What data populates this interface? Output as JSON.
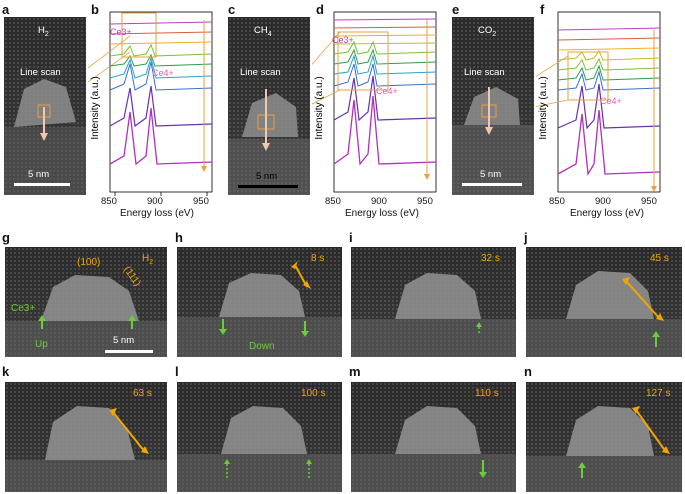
{
  "top": {
    "panels": [
      {
        "letter": "a",
        "gas_base": "H",
        "gas_sub": "2",
        "line_scan": "Line scan",
        "scalebar": "5 nm"
      },
      {
        "letter": "c",
        "gas_base": "CH",
        "gas_sub": "4",
        "line_scan": "Line scan",
        "scalebar": "5 nm"
      },
      {
        "letter": "e",
        "gas_base": "CO",
        "gas_sub": "2",
        "line_scan": "Line scan",
        "scalebar": "5 nm"
      }
    ],
    "spectra": [
      {
        "letter": "b",
        "ylabel": "Intensity (a.u.)",
        "xlabel": "Energy loss (eV)",
        "ticks": [
          "850",
          "900",
          "950"
        ],
        "ce3": "Ce3+",
        "ce4": "Ce4+"
      },
      {
        "letter": "d",
        "ylabel": "Intensity (a.u.)",
        "xlabel": "Energy loss (eV)",
        "ticks": [
          "850",
          "900",
          "950"
        ],
        "ce3": "Ce3+",
        "ce4": "Ce4+"
      },
      {
        "letter": "f",
        "ylabel": "Intensity (a.u.)",
        "xlabel": "Energy loss (eV)",
        "ticks": [
          "850",
          "900",
          "950"
        ],
        "ce4": "Ce4+"
      }
    ]
  },
  "bottom": {
    "panels": [
      {
        "letter": "g",
        "time": "H2",
        "facet100": "(100)",
        "facet111": "(111)",
        "ce3": "Ce3+",
        "up": "Up",
        "scalebar": "5 nm"
      },
      {
        "letter": "h",
        "time": "8 s",
        "down": "Down"
      },
      {
        "letter": "i",
        "time": "32 s"
      },
      {
        "letter": "j",
        "time": "45 s"
      },
      {
        "letter": "k",
        "time": "63 s"
      },
      {
        "letter": "l",
        "time": "100 s"
      },
      {
        "letter": "m",
        "time": "110 s"
      },
      {
        "letter": "n",
        "time": "127 s"
      }
    ]
  },
  "colors": {
    "orange": "#f0a500",
    "green": "#6ccb3a",
    "magenta": "#c23cc2",
    "pink": "#e05fb0"
  }
}
